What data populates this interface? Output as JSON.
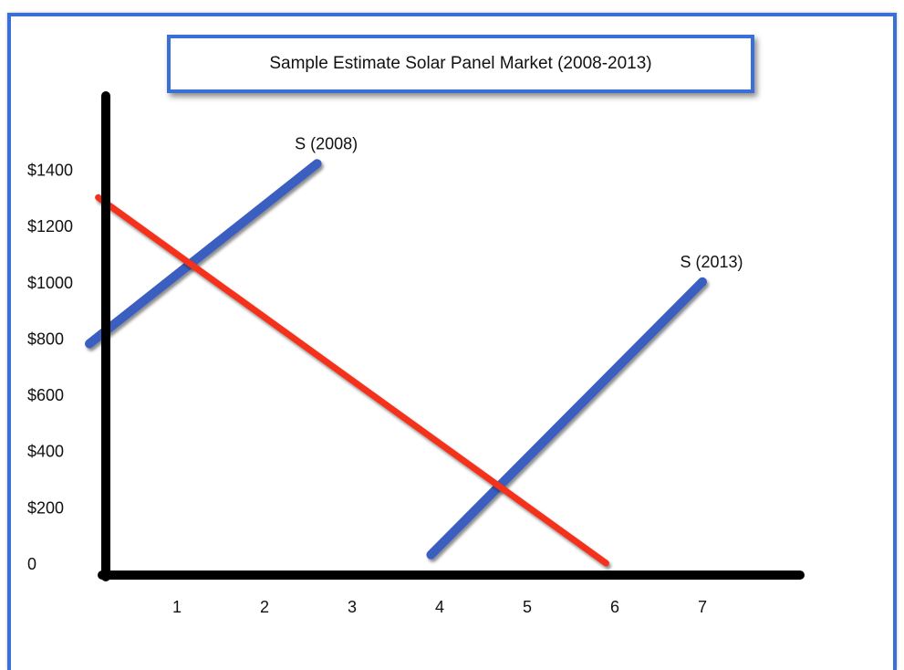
{
  "chart_data": {
    "type": "line",
    "title": "Sample Estimate Solar Panel Market (2008-2013)",
    "xlabel": "",
    "ylabel": "",
    "x_ticks": [
      "1",
      "2",
      "3",
      "4",
      "5",
      "6",
      "7"
    ],
    "y_ticks": [
      "0",
      "$200",
      "$400",
      "$600",
      "$800",
      "$1000",
      "$1200",
      "$1400"
    ],
    "xlim": [
      0,
      8
    ],
    "ylim": [
      0,
      1600
    ],
    "grid": false,
    "legend": "none",
    "series": [
      {
        "name": "S (2008)",
        "color": "#3b5fc0",
        "points": [
          [
            0,
            780
          ],
          [
            2.6,
            1420
          ]
        ]
      },
      {
        "name": "S (2013)",
        "color": "#3b5fc0",
        "points": [
          [
            3.9,
            30
          ],
          [
            7.0,
            1000
          ]
        ]
      },
      {
        "color": "#f4331b",
        "points": [
          [
            0.1,
            1300
          ],
          [
            5.9,
            0
          ]
        ]
      }
    ]
  }
}
